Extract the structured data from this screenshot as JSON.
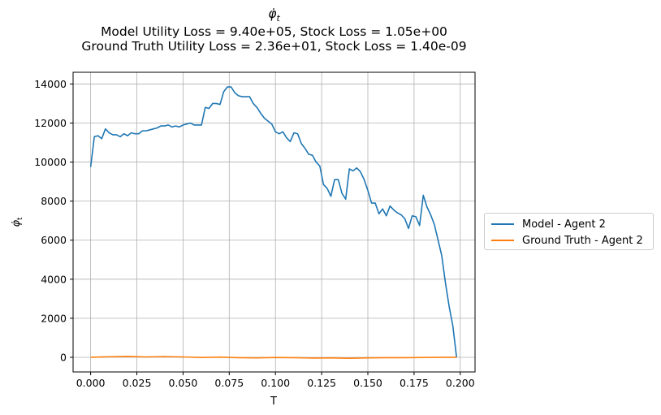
{
  "chart_data": {
    "type": "line",
    "title": "φ̇_t",
    "subtitle_lines": [
      "Model Utility Loss = 9.40e+05, Stock Loss = 1.05e+00",
      "Ground Truth Utility Loss = 2.36e+01, Stock Loss = 1.40e-09"
    ],
    "xlabel": "T",
    "ylabel": "φ̇_t",
    "xlim": [
      -0.0095,
      0.208
    ],
    "ylim": [
      -750,
      14600
    ],
    "xticks": [
      0.0,
      0.025,
      0.05,
      0.075,
      0.1,
      0.125,
      0.15,
      0.175,
      0.2
    ],
    "xtick_labels": [
      "0.000",
      "0.025",
      "0.050",
      "0.075",
      "0.100",
      "0.125",
      "0.150",
      "0.175",
      "0.200"
    ],
    "yticks": [
      0,
      2000,
      4000,
      6000,
      8000,
      10000,
      12000,
      14000
    ],
    "ytick_labels": [
      "0",
      "2000",
      "4000",
      "6000",
      "8000",
      "10000",
      "12000",
      "14000"
    ],
    "grid": true,
    "legend_placement": "outside-right",
    "series": [
      {
        "name": "Model - Agent 2",
        "color": "#1f77b4",
        "x": [
          0.0,
          0.002,
          0.004,
          0.006,
          0.008,
          0.01,
          0.012,
          0.014,
          0.016,
          0.018,
          0.02,
          0.022,
          0.024,
          0.026,
          0.028,
          0.03,
          0.032,
          0.034,
          0.036,
          0.038,
          0.04,
          0.042,
          0.044,
          0.046,
          0.048,
          0.05,
          0.052,
          0.054,
          0.056,
          0.058,
          0.06,
          0.062,
          0.064,
          0.066,
          0.068,
          0.07,
          0.072,
          0.074,
          0.076,
          0.078,
          0.08,
          0.082,
          0.084,
          0.086,
          0.088,
          0.09,
          0.092,
          0.094,
          0.096,
          0.098,
          0.1,
          0.102,
          0.104,
          0.106,
          0.108,
          0.11,
          0.112,
          0.114,
          0.116,
          0.118,
          0.12,
          0.122,
          0.124,
          0.126,
          0.128,
          0.13,
          0.132,
          0.134,
          0.136,
          0.138,
          0.14,
          0.142,
          0.144,
          0.146,
          0.148,
          0.15,
          0.152,
          0.154,
          0.156,
          0.158,
          0.16,
          0.162,
          0.164,
          0.166,
          0.168,
          0.17,
          0.172,
          0.174,
          0.176,
          0.178,
          0.18,
          0.182,
          0.184,
          0.186,
          0.188,
          0.19,
          0.192,
          0.194,
          0.196,
          0.198
        ],
        "y": [
          9750,
          11300,
          11350,
          11200,
          11700,
          11500,
          11400,
          11400,
          11300,
          11450,
          11350,
          11500,
          11450,
          11450,
          11600,
          11600,
          11650,
          11700,
          11750,
          11850,
          11850,
          11900,
          11800,
          11850,
          11800,
          11900,
          11950,
          12000,
          11900,
          11900,
          11900,
          12800,
          12750,
          13000,
          13000,
          12950,
          13600,
          13850,
          13850,
          13550,
          13400,
          13350,
          13350,
          13350,
          13000,
          12800,
          12500,
          12250,
          12100,
          11950,
          11550,
          11450,
          11550,
          11250,
          11050,
          11500,
          11450,
          10950,
          10700,
          10400,
          10350,
          10000,
          9800,
          8850,
          8650,
          8250,
          9100,
          9100,
          8400,
          8100,
          9650,
          9550,
          9700,
          9500,
          9100,
          8550,
          7900,
          7900,
          7350,
          7600,
          7250,
          7750,
          7550,
          7400,
          7300,
          7100,
          6600,
          7250,
          7200,
          6750,
          8300,
          7700,
          7300,
          6800,
          6000,
          5200,
          3800,
          2600,
          1600,
          0
        ]
      },
      {
        "name": "Ground Truth - Agent 2",
        "color": "#ff7f0e",
        "x": [
          0.0,
          0.01,
          0.02,
          0.03,
          0.04,
          0.05,
          0.06,
          0.07,
          0.08,
          0.09,
          0.1,
          0.11,
          0.12,
          0.13,
          0.14,
          0.15,
          0.16,
          0.17,
          0.18,
          0.19,
          0.198
        ],
        "y": [
          0,
          30,
          50,
          20,
          40,
          20,
          -10,
          10,
          -20,
          -30,
          -10,
          -20,
          -40,
          -30,
          -50,
          -30,
          -20,
          -20,
          -10,
          0,
          0
        ]
      }
    ]
  }
}
